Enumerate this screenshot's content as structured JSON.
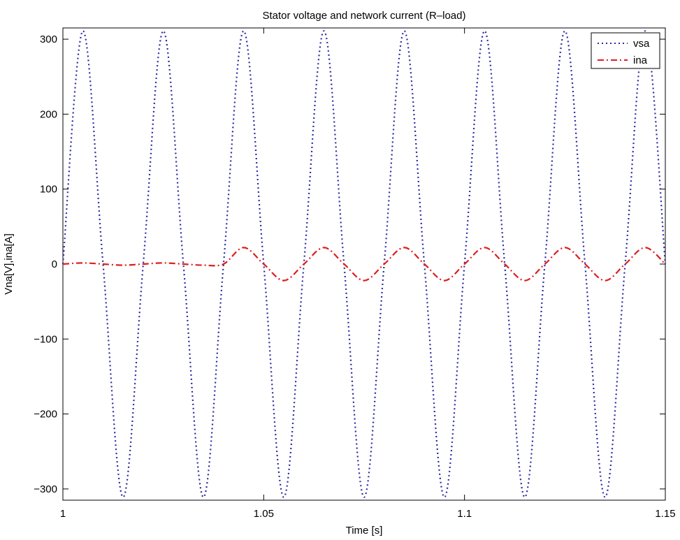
{
  "chart_data": {
    "type": "line",
    "title": "Stator voltage and network current (R–load)",
    "xlabel": "Time [s]",
    "ylabel": "Vna[V],ina[A]",
    "xlim": [
      1,
      1.15
    ],
    "ylim": [
      -315,
      315
    ],
    "x_ticks": [
      1,
      1.05,
      1.1,
      1.15
    ],
    "x_tick_labels": [
      "1",
      "1.05",
      "1.1",
      "1.15"
    ],
    "y_ticks": [
      300,
      200,
      100,
      0,
      -100,
      -200,
      -300
    ],
    "y_tick_labels": [
      "300",
      "200",
      "100",
      "0",
      "−100",
      "−200",
      "−300"
    ],
    "grid": false,
    "legend_position": "top-right",
    "series": [
      {
        "name": "vsa",
        "color": "#2b2b9e",
        "style": "dotted",
        "x": [
          1.0,
          1.005,
          1.01,
          1.015,
          1.02,
          1.025,
          1.03,
          1.035,
          1.04,
          1.045,
          1.05,
          1.055,
          1.06,
          1.065,
          1.07,
          1.075,
          1.08,
          1.085,
          1.09,
          1.095,
          1.1,
          1.105,
          1.11,
          1.115,
          1.12,
          1.125,
          1.13,
          1.135,
          1.14,
          1.145,
          1.15
        ],
        "y": [
          0,
          311,
          0,
          -311,
          0,
          311,
          0,
          -311,
          0,
          311,
          0,
          -311,
          0,
          311,
          0,
          -311,
          0,
          311,
          0,
          -311,
          0,
          311,
          0,
          -311,
          0,
          311,
          0,
          -311,
          0,
          311,
          0
        ]
      },
      {
        "name": "ina",
        "color": "#dd1f1f",
        "style": "dashdot",
        "x": [
          1.0,
          1.005,
          1.01,
          1.015,
          1.02,
          1.025,
          1.03,
          1.035,
          1.04,
          1.045,
          1.05,
          1.055,
          1.06,
          1.065,
          1.07,
          1.075,
          1.08,
          1.085,
          1.09,
          1.095,
          1.1,
          1.105,
          1.11,
          1.115,
          1.12,
          1.125,
          1.13,
          1.135,
          1.14,
          1.145,
          1.15
        ],
        "y": [
          0,
          1.5,
          0,
          -1.5,
          0,
          1.5,
          0,
          -1.5,
          0,
          22,
          0,
          -22,
          0,
          22,
          0,
          -22,
          0,
          22,
          0,
          -22,
          0,
          22,
          0,
          -22,
          0,
          22,
          0,
          -22,
          0,
          22,
          0
        ]
      }
    ]
  }
}
